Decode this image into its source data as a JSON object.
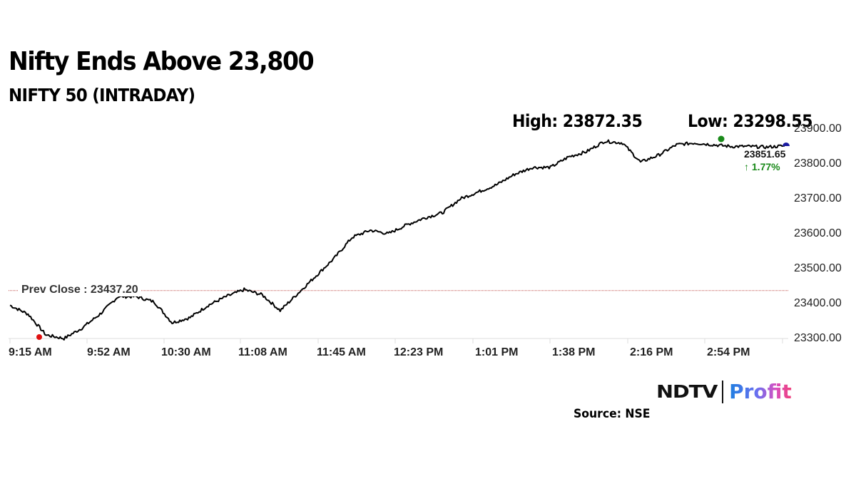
{
  "header": {
    "title": "Nifty Ends Above 23,800",
    "subtitle": "NIFTY 50 (INTRADAY)",
    "high_label": "High: 23872.35",
    "low_label": "Low: 23298.55"
  },
  "annotations": {
    "prev_close_label": "Prev Close : 23437.20",
    "last_value": "23851.65",
    "change": "↑ 1.77%"
  },
  "branding": {
    "logo_left": "NDTV",
    "logo_right": "Profit",
    "source": "Source: NSE"
  },
  "colors": {
    "line": "#000000",
    "prev_close_line": "#c0504d",
    "high_marker": "#1a8a1a",
    "low_marker": "#e01010",
    "last_marker": "#1a1aa0",
    "change_text": "#1a8a1a"
  },
  "chart_data": {
    "type": "line",
    "title": "Nifty Ends Above 23,800",
    "subtitle": "NIFTY 50 (INTRADAY)",
    "xlabel": "",
    "ylabel": "",
    "x_ticks": [
      "9:15 AM",
      "9:52 AM",
      "10:30 AM",
      "11:08 AM",
      "11:45 AM",
      "12:23 PM",
      "1:01 PM",
      "1:38 PM",
      "2:16 PM",
      "2:54 PM"
    ],
    "y_ticks": [
      "23300.00",
      "23400.00",
      "23500.00",
      "23600.00",
      "23700.00",
      "23800.00",
      "23900.00"
    ],
    "ylim": [
      23300,
      23900
    ],
    "y_axis_position": "right",
    "grid": false,
    "reference_line": {
      "label": "Prev Close",
      "value": 23437.2
    },
    "high": 23872.35,
    "low": 23298.55,
    "last": 23851.65,
    "change_pct": 1.77,
    "series": [
      {
        "name": "NIFTY 50",
        "x": [
          "9:15 AM",
          "9:20 AM",
          "9:25 AM",
          "9:30 AM",
          "9:35 AM",
          "9:40 AM",
          "9:45 AM",
          "9:52 AM",
          "10:00 AM",
          "10:10 AM",
          "10:20 AM",
          "10:30 AM",
          "10:40 AM",
          "10:50 AM",
          "11:00 AM",
          "11:08 AM",
          "11:15 AM",
          "11:25 AM",
          "11:35 AM",
          "11:45 AM",
          "11:55 AM",
          "12:05 PM",
          "12:15 PM",
          "12:23 PM",
          "12:30 PM",
          "12:40 PM",
          "12:50 PM",
          "1:01 PM",
          "1:10 PM",
          "1:20 PM",
          "1:30 PM",
          "1:38 PM",
          "1:48 PM",
          "1:55 PM",
          "2:00 PM",
          "2:08 PM",
          "2:16 PM",
          "2:25 PM",
          "2:35 PM",
          "2:45 PM",
          "2:54 PM",
          "3:05 PM",
          "3:15 PM",
          "3:30 PM"
        ],
        "values": [
          23395,
          23370,
          23310,
          23300,
          23330,
          23370,
          23420,
          23420,
          23405,
          23345,
          23360,
          23395,
          23420,
          23440,
          23425,
          23380,
          23430,
          23480,
          23530,
          23590,
          23610,
          23600,
          23625,
          23645,
          23660,
          23700,
          23720,
          23740,
          23770,
          23790,
          23790,
          23820,
          23835,
          23865,
          23860,
          23805,
          23825,
          23855,
          23860,
          23855,
          23850,
          23850,
          23848,
          23851.65
        ]
      }
    ]
  }
}
